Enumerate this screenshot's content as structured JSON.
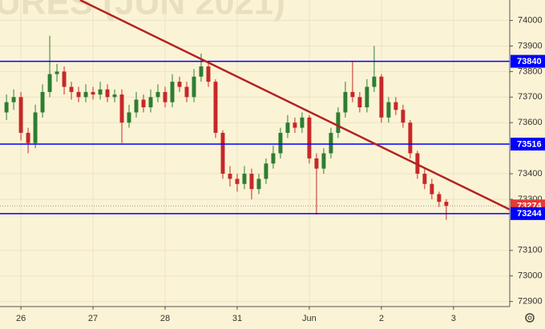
{
  "chart_data": {
    "type": "candlestick",
    "watermark": "URES (JUN 2021)",
    "x": [
      0,
      1,
      2,
      3,
      4,
      5,
      6,
      7,
      8,
      9,
      10,
      11,
      12,
      13,
      14,
      15,
      16,
      17,
      18,
      19,
      20,
      21,
      22,
      23,
      24,
      25,
      26,
      27,
      28,
      29,
      30,
      31,
      32,
      33,
      34,
      35,
      36,
      37,
      38,
      39,
      40,
      41,
      42,
      43,
      44,
      45,
      46,
      47,
      48,
      49,
      50,
      51,
      52,
      53,
      54,
      55,
      56,
      57,
      58,
      59,
      60,
      61
    ],
    "open": [
      73640,
      73680,
      73700,
      73560,
      73520,
      73640,
      73720,
      73790,
      73800,
      73740,
      73720,
      73700,
      73720,
      73710,
      73730,
      73700,
      73710,
      73600,
      73640,
      73690,
      73660,
      73700,
      73720,
      73680,
      73760,
      73740,
      73700,
      73780,
      73820,
      73760,
      73560,
      73400,
      73380,
      73360,
      73400,
      73340,
      73380,
      73440,
      73480,
      73560,
      73600,
      73580,
      73620,
      73460,
      73420,
      73480,
      73560,
      73640,
      73720,
      73700,
      73660,
      73740,
      73780,
      73620,
      73680,
      73650,
      73600,
      73480,
      73400,
      73360,
      73320,
      73290
    ],
    "high": [
      73710,
      73730,
      73720,
      73580,
      73670,
      73750,
      73940,
      73830,
      73820,
      73760,
      73740,
      73750,
      73740,
      73760,
      73750,
      73730,
      73730,
      73670,
      73720,
      73710,
      73730,
      73750,
      73740,
      73790,
      73780,
      73760,
      73810,
      73870,
      73840,
      73770,
      73570,
      73430,
      73400,
      73430,
      73420,
      73400,
      73460,
      73510,
      73580,
      73630,
      73620,
      73640,
      73630,
      73480,
      73500,
      73580,
      73660,
      73760,
      73840,
      73720,
      73770,
      73900,
      73790,
      73700,
      73700,
      73670,
      73610,
      73490,
      73420,
      73380,
      73330,
      73300
    ],
    "low": [
      73610,
      73650,
      73530,
      73480,
      73500,
      73620,
      73700,
      73760,
      73710,
      73690,
      73680,
      73680,
      73690,
      73690,
      73680,
      73680,
      73520,
      73580,
      73620,
      73640,
      73640,
      73680,
      73660,
      73660,
      73720,
      73680,
      73680,
      73760,
      73740,
      73540,
      73380,
      73350,
      73330,
      73340,
      73300,
      73320,
      73360,
      73420,
      73460,
      73540,
      73560,
      73560,
      73440,
      73240,
      73400,
      73460,
      73540,
      73620,
      73680,
      73640,
      73640,
      73720,
      73600,
      73600,
      73630,
      73580,
      73460,
      73380,
      73340,
      73300,
      73270,
      73220
    ],
    "close": [
      73680,
      73700,
      73560,
      73520,
      73640,
      73720,
      73790,
      73800,
      73740,
      73720,
      73700,
      73720,
      73710,
      73730,
      73700,
      73710,
      73600,
      73640,
      73690,
      73660,
      73700,
      73720,
      73680,
      73760,
      73740,
      73700,
      73780,
      73820,
      73760,
      73560,
      73400,
      73380,
      73360,
      73400,
      73340,
      73380,
      73440,
      73480,
      73560,
      73600,
      73580,
      73620,
      73460,
      73420,
      73480,
      73560,
      73640,
      73720,
      73700,
      73660,
      73740,
      73780,
      73620,
      73680,
      73650,
      73600,
      73480,
      73400,
      73360,
      73320,
      73290,
      73274
    ],
    "up_color": "#2e7d32",
    "down_color": "#c62828",
    "xlim": [
      -0.9,
      69.8
    ],
    "xticks": [
      {
        "value": 2,
        "label": "26"
      },
      {
        "value": 12,
        "label": "27"
      },
      {
        "value": 22,
        "label": "28"
      },
      {
        "value": 32,
        "label": "31"
      },
      {
        "value": 42,
        "label": "Jun"
      },
      {
        "value": 52,
        "label": "2"
      },
      {
        "value": 62,
        "label": "3"
      }
    ],
    "ylim": [
      72880,
      74080
    ],
    "yticks": [
      72900,
      73000,
      73100,
      73300,
      73400,
      73600,
      73700,
      73800,
      73900,
      74000
    ],
    "grid": true,
    "hlines": [
      73840,
      73516,
      73244
    ],
    "hline_color": "#0000ff",
    "last_price": 73274,
    "last_price_color": "#e53935",
    "trendline": {
      "x": [
        10.2,
        69.8
      ],
      "y": [
        74080,
        73260
      ],
      "color": "#b22222"
    }
  }
}
